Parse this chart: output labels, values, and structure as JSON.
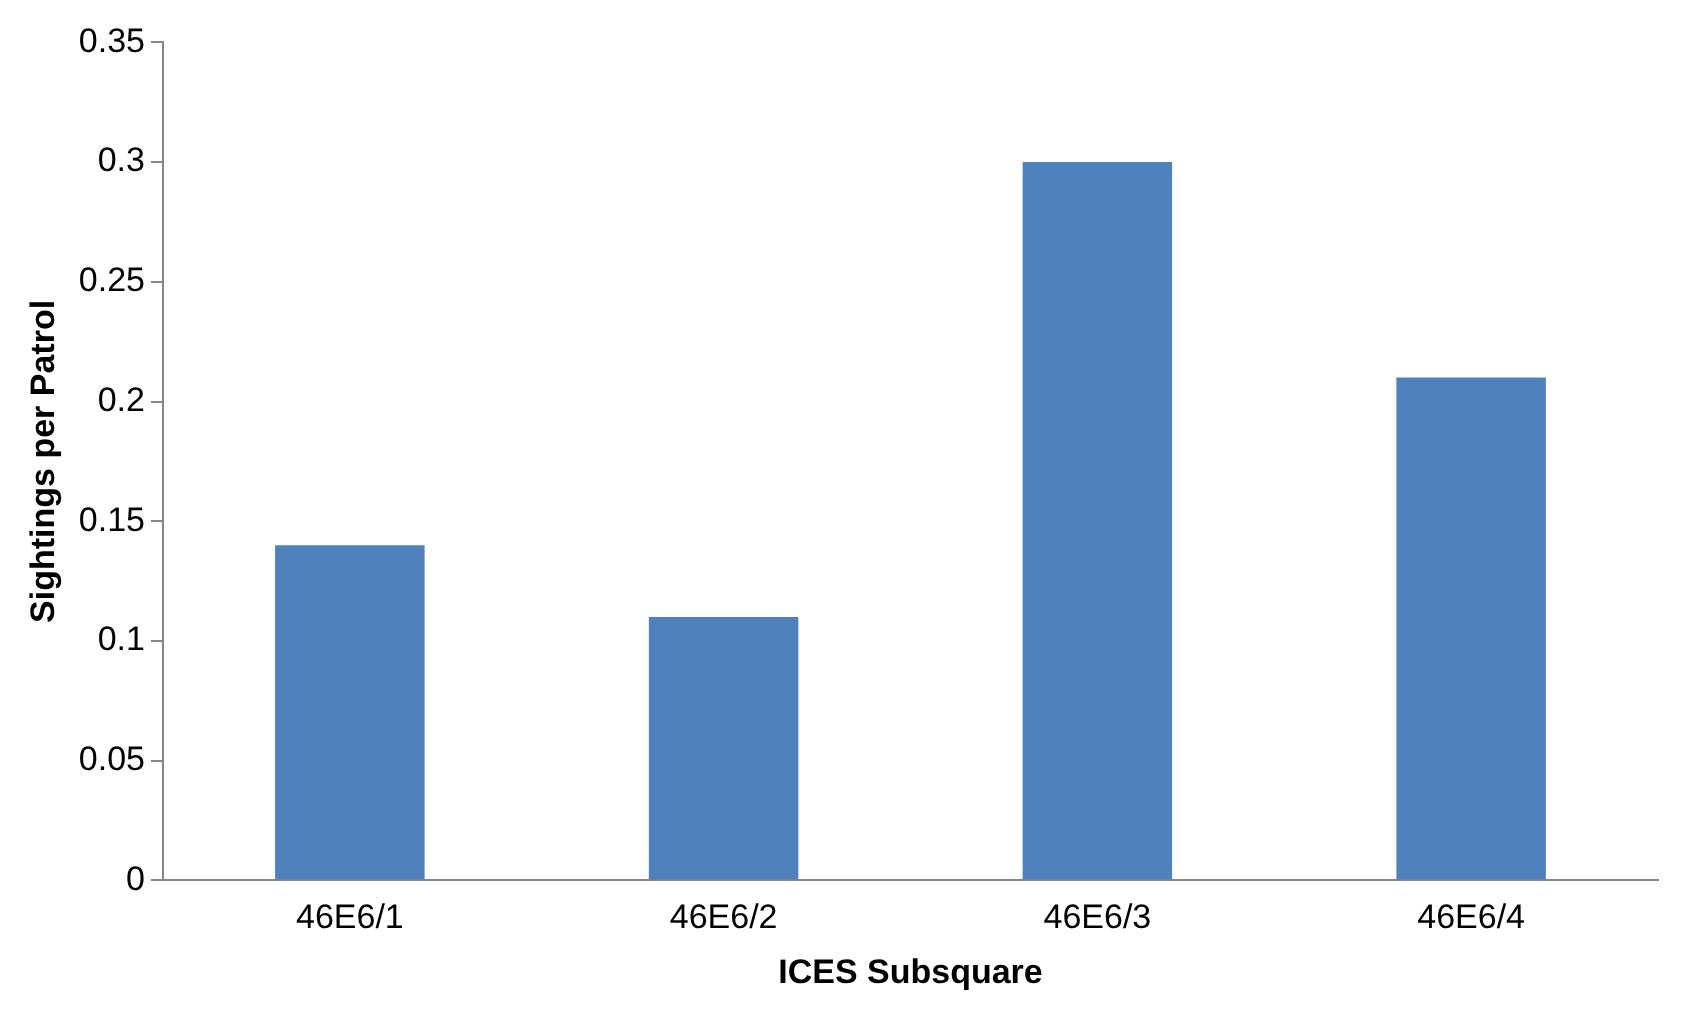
{
  "chart_data": {
    "type": "bar",
    "xlabel": "ICES Subsquare",
    "ylabel": "Sightings per Patrol",
    "categories": [
      "46E6/1",
      "46E6/2",
      "46E6/3",
      "46E6/4"
    ],
    "values": [
      0.14,
      0.11,
      0.3,
      0.21
    ],
    "color": "#4f81bd",
    "ylim": [
      0,
      0.35
    ],
    "yticks": [
      0,
      0.05,
      0.1,
      0.15,
      0.2,
      0.25,
      0.3,
      0.35
    ],
    "grid": false,
    "legend": false
  }
}
